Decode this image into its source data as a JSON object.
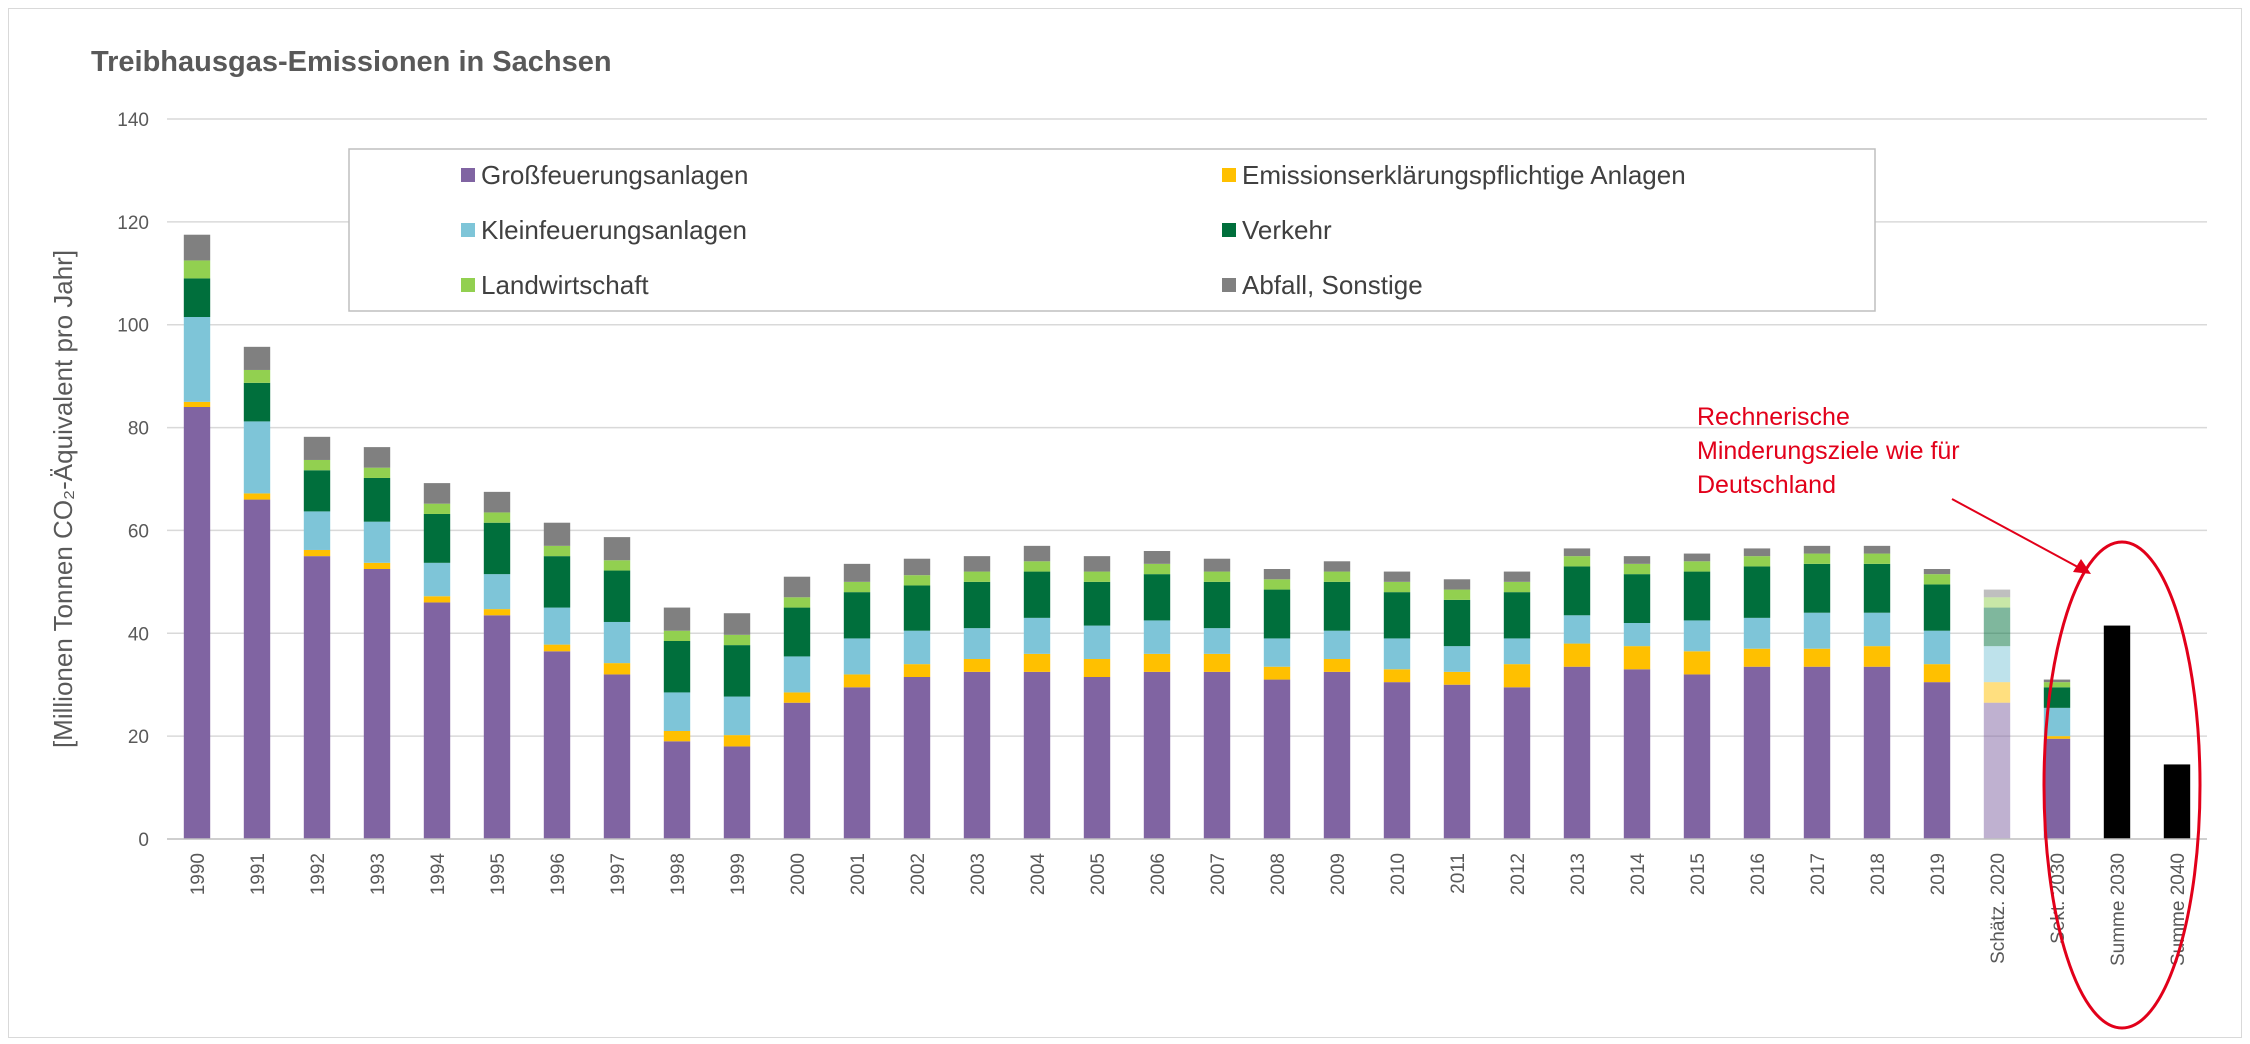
{
  "chart_data": {
    "type": "bar",
    "stacked": true,
    "title": "Treibhausgas-Emissionen in Sachsen",
    "ylabel": "[Millionen Tonnen CO₂-Äquivalent  pro Jahr]",
    "ylim": [
      0,
      140
    ],
    "yticks": [
      0,
      20,
      40,
      60,
      80,
      100,
      120,
      140
    ],
    "grid": true,
    "legend_position": "top",
    "categories": [
      "1990",
      "1991",
      "1992",
      "1993",
      "1994",
      "1995",
      "1996",
      "1997",
      "1998",
      "1999",
      "2000",
      "2001",
      "2002",
      "2003",
      "2004",
      "2005",
      "2006",
      "2007",
      "2008",
      "2009",
      "2010",
      "2011",
      "2012",
      "2013",
      "2014",
      "2015",
      "2016",
      "2017",
      "2018",
      "2019",
      "Schätz. 2020",
      "Sekt. 2030",
      "Summe 2030",
      "Summe 2040"
    ],
    "series": [
      {
        "name": "Großfeuerungsanlagen",
        "color": "#8064a2",
        "values": [
          84,
          66,
          55,
          52.5,
          46,
          43.5,
          36.5,
          32,
          19,
          18,
          26.5,
          29.5,
          31.5,
          32.5,
          32.5,
          31.5,
          32.5,
          32.5,
          31,
          32.5,
          30.5,
          30,
          29.5,
          33.5,
          33,
          32,
          33.5,
          33.5,
          33.5,
          30.5,
          26.5,
          19.5,
          0,
          0
        ]
      },
      {
        "name": "Emissionserklärungspflichtige Anlagen",
        "color": "#ffc000",
        "values": [
          1,
          1.2,
          1.2,
          1.2,
          1.2,
          1.2,
          1.3,
          2.2,
          2,
          2.2,
          2,
          2.5,
          2.5,
          2.5,
          3.5,
          3.5,
          3.5,
          3.5,
          2.5,
          2.5,
          2.5,
          2.5,
          4.5,
          4.5,
          4.5,
          4.5,
          3.5,
          3.5,
          4,
          3.5,
          4,
          0.5,
          0,
          0
        ]
      },
      {
        "name": "Kleinfeuerungsanlagen",
        "color": "#7ec5d8",
        "values": [
          16.5,
          14,
          7.5,
          8,
          6.5,
          6.8,
          7.2,
          8,
          7.5,
          7.5,
          7,
          7,
          6.5,
          6,
          7,
          6.5,
          6.5,
          5,
          5.5,
          5.5,
          6,
          5,
          5,
          5.5,
          4.5,
          6,
          6,
          7,
          6.5,
          6.5,
          7,
          5.5,
          0,
          0
        ]
      },
      {
        "name": "Verkehr",
        "color": "#006f3c",
        "values": [
          7.5,
          7.5,
          8,
          8.5,
          9.5,
          10,
          10,
          10,
          10,
          10,
          9.5,
          9,
          8.8,
          9,
          9,
          8.5,
          9,
          9,
          9.5,
          9.5,
          9,
          9,
          9,
          9.5,
          9.5,
          9.5,
          10,
          9.5,
          9.5,
          9,
          7.5,
          4,
          0,
          0
        ]
      },
      {
        "name": "Landwirtschaft",
        "color": "#92d050",
        "values": [
          3.5,
          2.5,
          2,
          2,
          2,
          2,
          2,
          2,
          2,
          2,
          2,
          2,
          2,
          2,
          2,
          2,
          2,
          2,
          2,
          2,
          2,
          2,
          2,
          2,
          2,
          2,
          2,
          2,
          2,
          2,
          2,
          1,
          0,
          0
        ]
      },
      {
        "name": "Abfall, Sonstige",
        "color": "#808080",
        "values": [
          5,
          4.5,
          4.5,
          4,
          4,
          4,
          4.5,
          4.5,
          4.5,
          4.2,
          4,
          3.5,
          3.2,
          3,
          3,
          3,
          2.5,
          2.5,
          2,
          2,
          2,
          2,
          2,
          1.5,
          1.5,
          1.5,
          1.5,
          1.5,
          1.5,
          1,
          1.5,
          0.5,
          0,
          0
        ]
      },
      {
        "name": "Summe",
        "color": "#000000",
        "values": [
          0,
          0,
          0,
          0,
          0,
          0,
          0,
          0,
          0,
          0,
          0,
          0,
          0,
          0,
          0,
          0,
          0,
          0,
          0,
          0,
          0,
          0,
          0,
          0,
          0,
          0,
          0,
          0,
          0,
          0,
          0,
          0,
          41.5,
          14.5
        ]
      }
    ],
    "legend_entries": [
      "Großfeuerungsanlagen",
      "Emissionserklärungspflichtige Anlagen",
      "Kleinfeuerungsanlagen",
      "Verkehr",
      "Landwirtschaft",
      "Abfall, Sonstige"
    ],
    "estimated_categories": [
      "Schätz. 2020"
    ],
    "annotation": {
      "lines": [
        "Rechnerische",
        "Minderungsziele   wie für",
        "Deutschland"
      ],
      "color": "#e2001a"
    }
  }
}
